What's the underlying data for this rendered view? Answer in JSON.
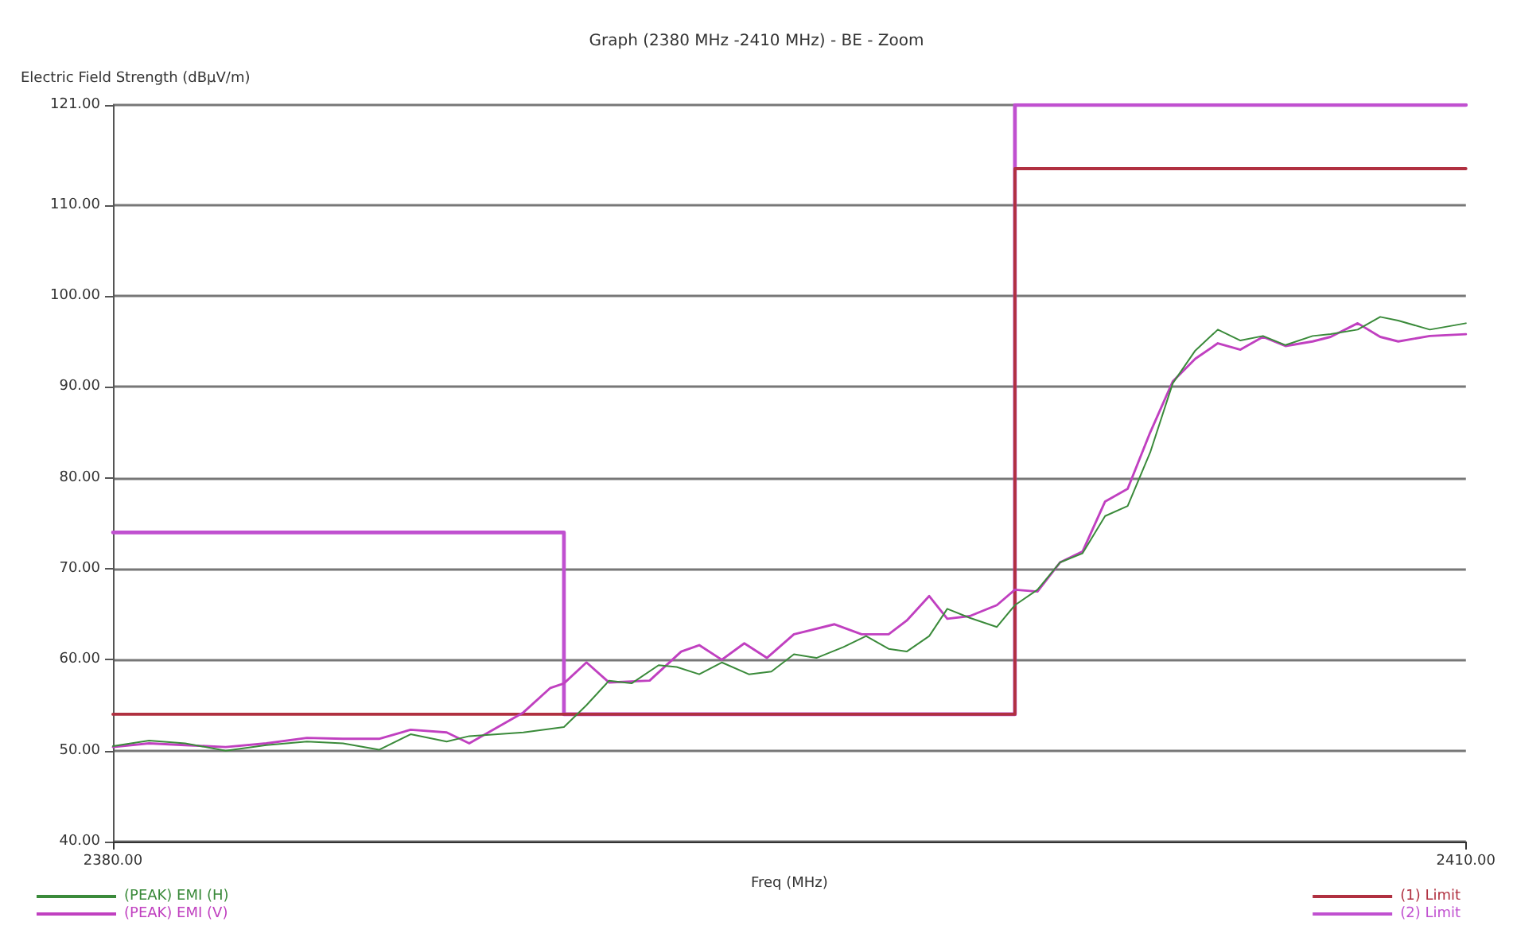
{
  "chart_data": {
    "type": "line",
    "title": "Graph (2380 MHz -2410 MHz) - BE - Zoom",
    "xlabel": "Freq (MHz)",
    "ylabel": "Electric Field Strength (dBµV/m)",
    "xlim": [
      2380,
      2410
    ],
    "xticks": [
      {
        "value": 2380,
        "label": "2380.00"
      },
      {
        "value": 2410,
        "label": "2410.00"
      }
    ],
    "ylim": [
      40,
      121
    ],
    "yticks": [
      {
        "value": 40,
        "label": "40.00"
      },
      {
        "value": 50,
        "label": "50.00"
      },
      {
        "value": 60,
        "label": "60.00"
      },
      {
        "value": 70,
        "label": "70.00"
      },
      {
        "value": 80,
        "label": "80.00"
      },
      {
        "value": 90,
        "label": "90.00"
      },
      {
        "value": 100,
        "label": "100.00"
      },
      {
        "value": 110,
        "label": "110.00"
      },
      {
        "value": 121,
        "label": "121.00"
      }
    ],
    "grid": "y",
    "legend": "bottom",
    "marker": "none",
    "line_style": "solid",
    "series": [
      {
        "name": "(PEAK) EMI (H)",
        "color": "#3a8a3a",
        "x": [
          2380,
          2380.8,
          2381.6,
          2382.5,
          2383.4,
          2384.3,
          2385.1,
          2385.9,
          2386.6,
          2387.4,
          2387.9,
          2389.1,
          2390,
          2390.5,
          2391,
          2391.5,
          2392.1,
          2392.5,
          2393,
          2393.5,
          2394.1,
          2394.6,
          2395.1,
          2395.6,
          2396.2,
          2396.7,
          2397.2,
          2397.6,
          2398.1,
          2398.5,
          2399,
          2399.6,
          2400,
          2400.5,
          2401,
          2401.5,
          2402,
          2402.5,
          2403,
          2403.5,
          2404,
          2404.5,
          2405,
          2405.5,
          2406,
          2406.6,
          2407,
          2407.6,
          2408.1,
          2408.5,
          2409.2,
          2410
        ],
        "values": [
          50.5,
          51.1,
          50.8,
          50,
          50.6,
          51,
          50.8,
          50.1,
          51.8,
          51,
          51.6,
          52,
          52.6,
          55,
          57.7,
          57.4,
          59.4,
          59.2,
          58.4,
          59.7,
          58.4,
          58.7,
          60.6,
          60.2,
          61.4,
          62.6,
          61.2,
          60.9,
          62.6,
          65.6,
          64.6,
          63.6,
          66,
          67.7,
          70.7,
          71.7,
          75.8,
          76.9,
          82.8,
          90.4,
          94,
          96.3,
          95.1,
          95.6,
          94.6,
          95.6,
          95.8,
          96.3,
          97.7,
          97.3,
          96.3,
          97
        ]
      },
      {
        "name": "(PEAK) EMI (V)",
        "color": "#c040c0",
        "x": [
          2380,
          2380.8,
          2381.6,
          2382.5,
          2383.4,
          2384.3,
          2385.1,
          2385.9,
          2386.6,
          2387.4,
          2387.9,
          2389.1,
          2389.7,
          2390,
          2390.5,
          2391,
          2391.9,
          2392.6,
          2393,
          2393.5,
          2394,
          2394.5,
          2395.1,
          2396,
          2396.6,
          2397.2,
          2397.6,
          2398.1,
          2398.5,
          2399,
          2399.6,
          2400,
          2400.5,
          2401,
          2401.5,
          2402,
          2402.5,
          2403,
          2403.5,
          2404,
          2404.5,
          2405,
          2405.5,
          2406,
          2406.6,
          2407,
          2407.6,
          2408.1,
          2408.5,
          2409.2,
          2410
        ],
        "values": [
          50.4,
          50.8,
          50.6,
          50.4,
          50.8,
          51.4,
          51.3,
          51.3,
          52.3,
          52,
          50.8,
          54.2,
          56.9,
          57.4,
          59.7,
          57.5,
          57.7,
          60.9,
          61.6,
          60,
          61.8,
          60.2,
          62.8,
          63.9,
          62.8,
          62.8,
          64.3,
          67,
          64.5,
          64.8,
          66,
          67.7,
          67.5,
          70.7,
          71.9,
          77.4,
          78.8,
          85,
          90.6,
          93.1,
          94.8,
          94.1,
          95.5,
          94.5,
          95,
          95.5,
          97,
          95.5,
          95,
          95.6,
          95.8
        ]
      },
      {
        "name": "(1) Limit",
        "color": "#b03040",
        "x": [
          2380,
          2400,
          2400,
          2410
        ],
        "values": [
          54,
          54,
          114,
          114
        ]
      },
      {
        "name": "(2) Limit",
        "color": "#c050d0",
        "x": [
          2380,
          2390,
          2390,
          2400,
          2400,
          2410
        ],
        "values": [
          74,
          74,
          54,
          54,
          121,
          121
        ]
      }
    ]
  }
}
